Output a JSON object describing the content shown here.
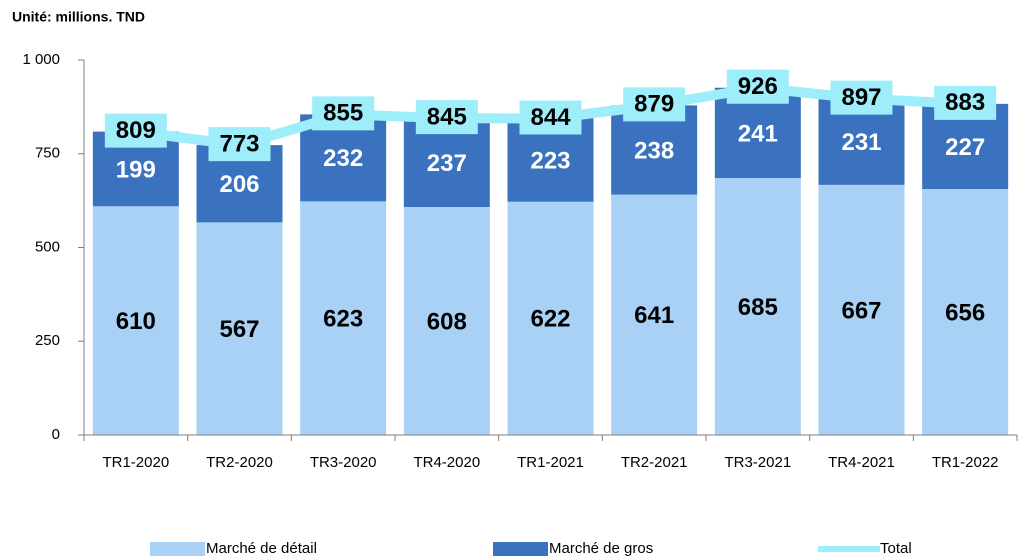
{
  "chart_data": {
    "type": "bar",
    "stacked": true,
    "subtitle": "Unité: millions. TND",
    "categories": [
      "TR1-2020",
      "TR2-2020",
      "TR3-2020",
      "TR4-2020",
      "TR1-2021",
      "TR2-2021",
      "TR3-2021",
      "TR4-2021",
      "TR1-2022"
    ],
    "series": [
      {
        "name": "Marché de détail",
        "color": "#a9d1f5",
        "values": [
          610,
          567,
          623,
          608,
          622,
          641,
          685,
          667,
          656
        ]
      },
      {
        "name": "Marché de gros",
        "color": "#3a72bf",
        "values": [
          199,
          206,
          232,
          237,
          223,
          238,
          241,
          231,
          227
        ]
      },
      {
        "name": "Total",
        "type": "line",
        "color": "#9eedfa",
        "values": [
          809,
          773,
          855,
          845,
          844,
          879,
          926,
          897,
          883
        ]
      }
    ],
    "ylim": [
      0,
      1000
    ],
    "yticks": [
      0,
      250,
      500,
      750,
      {
        "value": 1000,
        "label": "1 000"
      }
    ],
    "grid": false,
    "legend": "bottom"
  }
}
